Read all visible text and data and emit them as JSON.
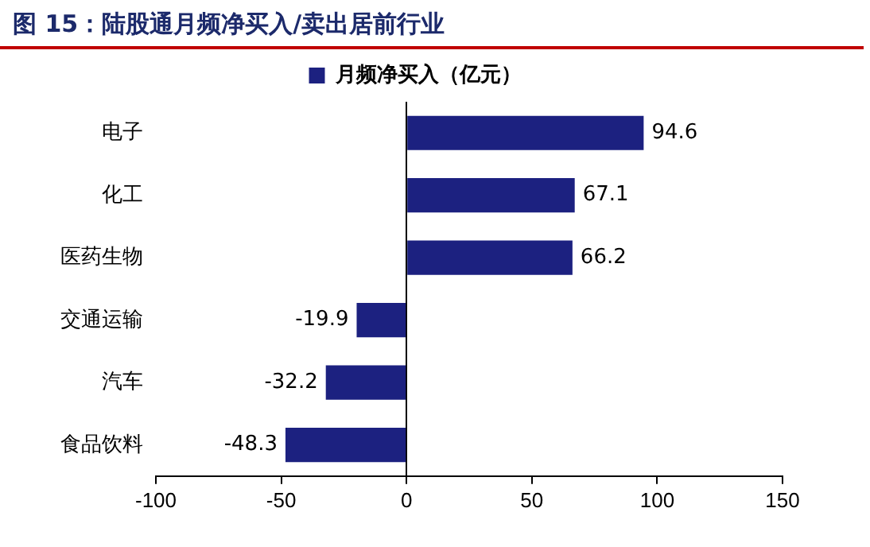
{
  "chart_data": {
    "type": "bar",
    "orientation": "horizontal",
    "title": "图 15：陆股通月频净买入/卖出居前行业",
    "categories": [
      "电子",
      "化工",
      "医药生物",
      "交通运输",
      "汽车",
      "食品饮料"
    ],
    "series": [
      {
        "name": "月频净买入（亿元）",
        "color": "#1c2180",
        "values": [
          94.6,
          67.1,
          66.2,
          -19.9,
          -32.2,
          -48.3
        ]
      }
    ],
    "xlim": [
      -100,
      150
    ],
    "xticks": [
      -100,
      -50,
      0,
      50,
      100,
      150
    ],
    "legend": "top",
    "data_labels": true
  }
}
